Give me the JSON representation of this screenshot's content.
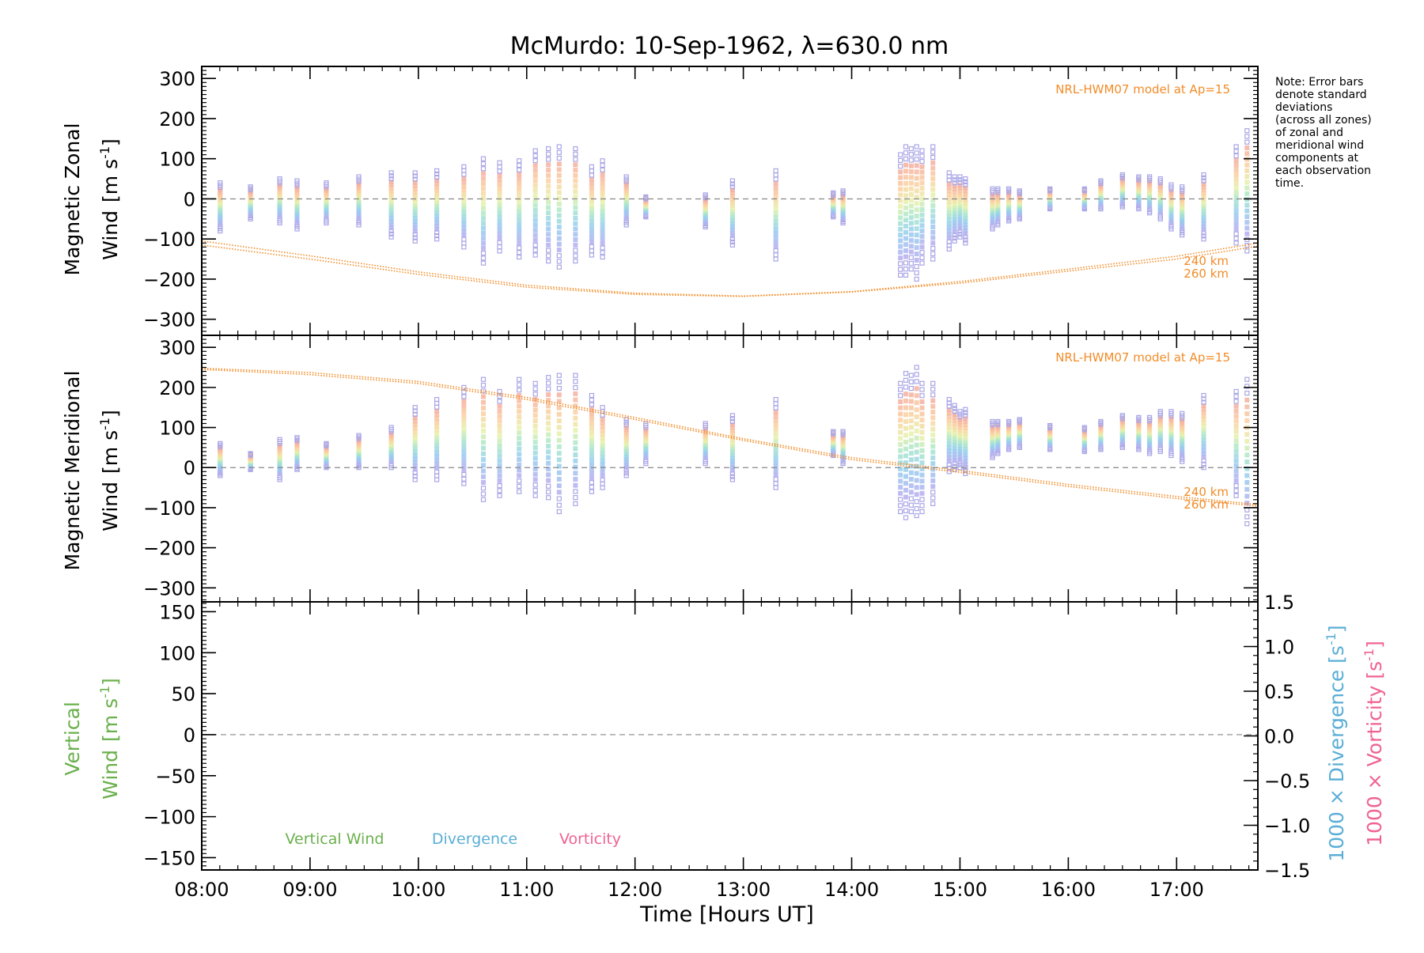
{
  "figure": {
    "title": "McMurdo: 10-Sep-1962, λ=630.0 nm",
    "note": [
      "Note: Error bars",
      "denote standard",
      "deviations",
      "(across all zones)",
      "of zonal and",
      "meridional wind",
      "components at",
      "each observation",
      "time."
    ],
    "colors": {
      "model": "#f28c28",
      "vertical": "#6ab04c",
      "divergence": "#5aaed6",
      "vorticity": "#f06292",
      "lavender": "#a9a6e6"
    }
  },
  "chart_data": [
    {
      "type": "scatter",
      "panel": "zonal",
      "ylabel_line1": "Magnetic Zonal",
      "ylabel_line2": "Wind",
      "ylabel_unit": "[m s",
      "ylabel_exp": "-1",
      "ylabel_close": "]",
      "xlim": [
        8.0,
        17.75
      ],
      "ylim": [
        -340,
        330
      ],
      "yticks": [
        300,
        200,
        100,
        0,
        -100,
        -200,
        -300
      ],
      "ytick_labels": [
        "300",
        "200",
        "100",
        "0",
        "−100",
        "−200",
        "−300"
      ],
      "model_label": "NRL-HWM07 model at Ap=15",
      "model_alt_labels": [
        "240 km",
        "260 km"
      ],
      "model": {
        "x": [
          8.0,
          9.0,
          10.0,
          11.0,
          12.0,
          13.0,
          14.0,
          15.0,
          16.0,
          17.0,
          17.75
        ],
        "y_240": [
          -115,
          -150,
          -188,
          -220,
          -238,
          -243,
          -232,
          -210,
          -180,
          -150,
          -118
        ],
        "y_260": [
          -105,
          -142,
          -182,
          -215,
          -235,
          -242,
          -231,
          -206,
          -175,
          -143,
          -110
        ]
      },
      "observations": {
        "x": [
          8.17,
          8.45,
          8.72,
          8.88,
          9.15,
          9.45,
          9.75,
          9.97,
          10.17,
          10.42,
          10.6,
          10.75,
          10.93,
          11.08,
          11.2,
          11.3,
          11.45,
          11.6,
          11.7,
          11.92,
          12.1,
          12.65,
          12.9,
          13.3,
          13.83,
          13.92,
          14.45,
          14.5,
          14.55,
          14.6,
          14.65,
          14.75,
          14.9,
          14.95,
          15.0,
          15.05,
          15.3,
          15.35,
          15.45,
          15.55,
          15.83,
          16.15,
          16.3,
          16.5,
          16.65,
          16.75,
          16.85,
          16.95,
          17.05,
          17.25,
          17.55,
          17.65
        ],
        "center": [
          -20,
          -10,
          -5,
          -15,
          -10,
          -5,
          -15,
          -20,
          -15,
          -20,
          -30,
          -20,
          -25,
          -10,
          -15,
          -20,
          -15,
          -30,
          -25,
          -5,
          -20,
          -30,
          -35,
          -40,
          -15,
          -20,
          -40,
          -30,
          -25,
          -35,
          -20,
          -10,
          -30,
          -25,
          -20,
          -30,
          -25,
          -20,
          -15,
          -15,
          0,
          0,
          10,
          20,
          15,
          10,
          0,
          -20,
          -30,
          -20,
          10,
          20
        ],
        "spread": [
          60,
          40,
          55,
          60,
          50,
          60,
          80,
          85,
          85,
          100,
          130,
          110,
          120,
          130,
          140,
          150,
          140,
          110,
          120,
          60,
          25,
          40,
          80,
          110,
          30,
          40,
          150,
          160,
          150,
          165,
          140,
          140,
          95,
          80,
          75,
          80,
          50,
          45,
          40,
          35,
          25,
          25,
          35,
          40,
          40,
          45,
          50,
          55,
          60,
          80,
          120,
          150
        ]
      }
    },
    {
      "type": "scatter",
      "panel": "meridional",
      "ylabel_line1": "Magnetic Meridional",
      "ylabel_line2": "Wind",
      "ylabel_unit": "[m s",
      "ylabel_exp": "-1",
      "ylabel_close": "]",
      "xlim": [
        8.0,
        17.75
      ],
      "ylim": [
        -335,
        330
      ],
      "yticks": [
        300,
        200,
        100,
        0,
        -100,
        -200,
        -300
      ],
      "ytick_labels": [
        "300",
        "200",
        "100",
        "0",
        "−100",
        "−200",
        "−300"
      ],
      "model_label": "NRL-HWM07 model at Ap=15",
      "model_alt_labels": [
        "240 km",
        "260 km"
      ],
      "model": {
        "x": [
          8.0,
          9.0,
          10.0,
          11.0,
          12.0,
          13.0,
          14.0,
          15.0,
          16.0,
          17.0,
          17.75
        ],
        "y_240": [
          248,
          237,
          215,
          175,
          125,
          72,
          25,
          -7,
          -42,
          -72,
          -92
        ],
        "y_260": [
          245,
          232,
          210,
          170,
          120,
          68,
          20,
          -12,
          -47,
          -77,
          -96
        ]
      },
      "observations": {
        "x": [
          8.17,
          8.45,
          8.72,
          8.88,
          9.15,
          9.45,
          9.75,
          9.97,
          10.17,
          10.42,
          10.6,
          10.75,
          10.93,
          11.08,
          11.2,
          11.3,
          11.45,
          11.6,
          11.7,
          11.92,
          12.1,
          12.65,
          12.9,
          13.3,
          13.83,
          13.92,
          14.45,
          14.5,
          14.55,
          14.6,
          14.65,
          14.75,
          14.9,
          14.95,
          15.0,
          15.05,
          15.3,
          15.35,
          15.45,
          15.55,
          15.83,
          16.15,
          16.3,
          16.5,
          16.65,
          16.75,
          16.85,
          16.95,
          17.05,
          17.25,
          17.55,
          17.65
        ],
        "center": [
          20,
          15,
          20,
          35,
          30,
          40,
          50,
          60,
          70,
          80,
          70,
          60,
          80,
          70,
          75,
          60,
          70,
          60,
          50,
          50,
          60,
          60,
          50,
          60,
          60,
          50,
          50,
          55,
          60,
          65,
          50,
          60,
          80,
          75,
          70,
          65,
          70,
          75,
          80,
          85,
          75,
          70,
          80,
          90,
          85,
          80,
          90,
          85,
          75,
          90,
          60,
          40
        ],
        "spread": [
          40,
          20,
          50,
          40,
          30,
          40,
          50,
          90,
          100,
          120,
          150,
          130,
          140,
          140,
          150,
          170,
          160,
          120,
          100,
          70,
          50,
          50,
          80,
          110,
          30,
          40,
          160,
          180,
          170,
          185,
          160,
          150,
          90,
          80,
          70,
          80,
          45,
          40,
          35,
          35,
          30,
          30,
          35,
          40,
          40,
          45,
          50,
          55,
          60,
          90,
          130,
          180
        ]
      }
    },
    {
      "type": "line",
      "panel": "vertical",
      "ylabel_line1": "Vertical",
      "ylabel_line2": "Wind",
      "ylabel_unit": "[m s",
      "ylabel_exp": "-1",
      "ylabel_close": "]",
      "xlim": [
        8.0,
        17.75
      ],
      "ylim": [
        -165,
        162
      ],
      "yticks": [
        150,
        100,
        50,
        0,
        -50,
        -100,
        -150
      ],
      "ytick_labels": [
        "150",
        "100",
        "50",
        "0",
        "−50",
        "−100",
        "−150"
      ],
      "y2lim": [
        -1.5,
        1.5
      ],
      "y2ticks": [
        1.5,
        1.0,
        0.5,
        0.0,
        -0.5,
        -1.0,
        -1.5
      ],
      "y2tick_labels": [
        "1.5",
        "1.0",
        "0.5",
        "0.0",
        "−0.5",
        "−1.0",
        "−1.5"
      ],
      "y2label_div": "1000 × Divergence [s",
      "y2label_vor": "1000 × Vorticity [s",
      "y2label_exp": "-1",
      "y2label_close": "]",
      "legend": [
        "Vertical Wind",
        "Divergence",
        "Vorticity"
      ],
      "xticks": [
        8,
        9,
        10,
        11,
        12,
        13,
        14,
        15,
        16,
        17
      ],
      "xtick_labels": [
        "08:00",
        "09:00",
        "10:00",
        "11:00",
        "12:00",
        "13:00",
        "14:00",
        "15:00",
        "16:00",
        "17:00"
      ],
      "xlabel": "Time [Hours UT]",
      "series": []
    }
  ]
}
